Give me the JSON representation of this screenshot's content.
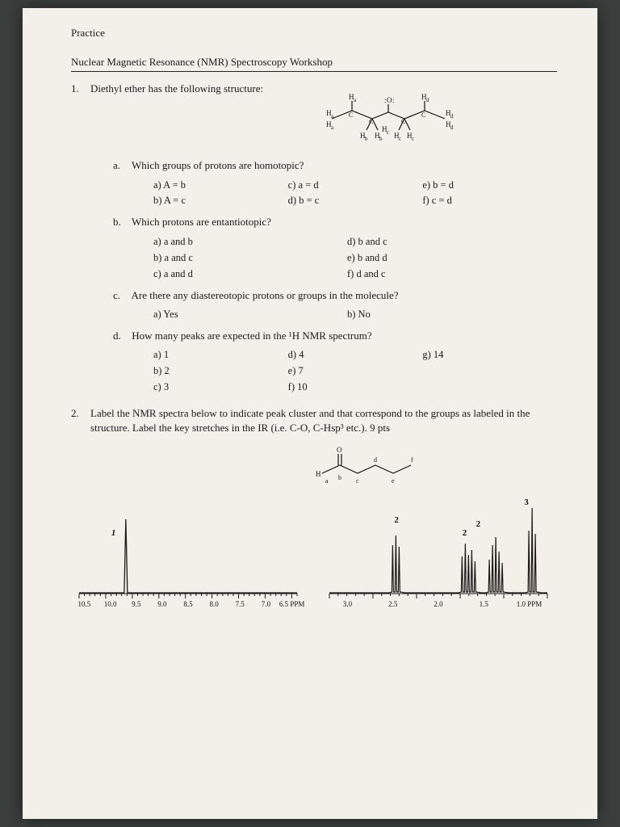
{
  "header": {
    "practice": "Practice",
    "title": "Nuclear Magnetic Resonance (NMR) Spectroscopy Workshop"
  },
  "q1": {
    "num": "1.",
    "text": "Diethyl ether has the following structure:",
    "a": {
      "label": "a.",
      "text": "Which groups of protons are homotopic?",
      "opts": {
        "c1": [
          "a)  A = b",
          "b)  A = c"
        ],
        "c2": [
          "c)  a = d",
          "d)  b = c"
        ],
        "c3": [
          "e)  b = d",
          "f)  c = d"
        ]
      }
    },
    "b": {
      "label": "b.",
      "text": "Which protons are entantiotopic?",
      "opts": {
        "c1": [
          "a)  a and b",
          "b)  a and c",
          "c)  a and d"
        ],
        "c2": [
          "d)  b and c",
          "e)  b and d",
          "f)  d and c"
        ]
      }
    },
    "c": {
      "label": "c.",
      "text": "Are there any diastereotopic protons or groups in the molecule?",
      "opts": {
        "c1": [
          "a)  Yes"
        ],
        "c2": [
          "b)  No"
        ]
      }
    },
    "d": {
      "label": "d.",
      "text": "How many peaks are expected in the ¹H NMR spectrum?",
      "opts": {
        "c1": [
          "a)  1",
          "b)  2",
          "c)  3"
        ],
        "c2": [
          "d)  4",
          "e)  7",
          "f)  10"
        ],
        "c3": [
          "g)  14"
        ]
      }
    }
  },
  "q2": {
    "num": "2.",
    "text": "Label the NMR spectra below to indicate peak cluster and that correspond to the groups as labeled in the structure.  Label the key stretches in the IR (i.e. C-O, C-Hsp³ etc.).  9 pts"
  },
  "spec1": {
    "ticks": [
      "10.5",
      "10.0",
      "9.5",
      "9.0",
      "8.5",
      "8.0",
      "7.5",
      "7.0",
      "6.5 PPM"
    ],
    "ann": "1",
    "peak_x_ppm": 9.7,
    "xlim": [
      10.6,
      6.4
    ],
    "baseline_color": "#1a1a1a"
  },
  "spec2": {
    "ticks": [
      "3.0",
      "2.5",
      "2.0",
      "1.5",
      "1.0 PPM"
    ],
    "anns": [
      {
        "t": "2",
        "x_ppm": 2.45,
        "y": 30
      },
      {
        "t": "2",
        "x_ppm": 1.7,
        "y": 46
      },
      {
        "t": "2",
        "x_ppm": 1.55,
        "y": 35
      },
      {
        "t": "3",
        "x_ppm": 1.02,
        "y": 8
      }
    ],
    "xlim": [
      3.2,
      0.8
    ],
    "baseline_color": "#1a1a1a"
  }
}
